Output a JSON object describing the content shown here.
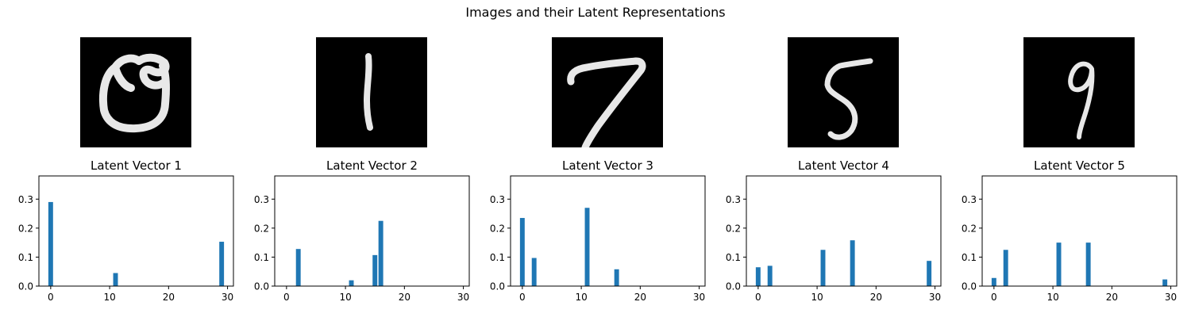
{
  "figure": {
    "title": "Images and their Latent Representations"
  },
  "images": [
    {
      "digit": "0"
    },
    {
      "digit": "1"
    },
    {
      "digit": "7"
    },
    {
      "digit": "5"
    },
    {
      "digit": "9"
    }
  ],
  "chart_data": [
    {
      "type": "bar",
      "title": "Latent Vector 1",
      "x": [
        0,
        11,
        29
      ],
      "values": [
        0.29,
        0.045,
        0.153
      ],
      "xlim": [
        -2,
        31
      ],
      "ylim": [
        0,
        0.38
      ],
      "xticks": [
        "0",
        "10",
        "20",
        "30"
      ],
      "yticks": [
        "0.0",
        "0.1",
        "0.2",
        "0.3"
      ],
      "bar_color": "#1f77b4",
      "grid": false
    },
    {
      "type": "bar",
      "title": "Latent Vector 2",
      "x": [
        2,
        11,
        15,
        16
      ],
      "values": [
        0.128,
        0.02,
        0.107,
        0.225
      ],
      "xlim": [
        -2,
        31
      ],
      "ylim": [
        0,
        0.38
      ],
      "xticks": [
        "0",
        "10",
        "20",
        "30"
      ],
      "yticks": [
        "0.0",
        "0.1",
        "0.2",
        "0.3"
      ],
      "bar_color": "#1f77b4",
      "grid": false
    },
    {
      "type": "bar",
      "title": "Latent Vector 3",
      "x": [
        0,
        2,
        11,
        16
      ],
      "values": [
        0.235,
        0.097,
        0.27,
        0.058
      ],
      "xlim": [
        -2,
        31
      ],
      "ylim": [
        0,
        0.38
      ],
      "xticks": [
        "0",
        "10",
        "20",
        "30"
      ],
      "yticks": [
        "0.0",
        "0.1",
        "0.2",
        "0.3"
      ],
      "bar_color": "#1f77b4",
      "grid": false
    },
    {
      "type": "bar",
      "title": "Latent Vector 4",
      "x": [
        0,
        2,
        11,
        16,
        29
      ],
      "values": [
        0.065,
        0.07,
        0.125,
        0.158,
        0.087
      ],
      "xlim": [
        -2,
        31
      ],
      "ylim": [
        0,
        0.38
      ],
      "xticks": [
        "0",
        "10",
        "20",
        "30"
      ],
      "yticks": [
        "0.0",
        "0.1",
        "0.2",
        "0.3"
      ],
      "bar_color": "#1f77b4",
      "grid": false
    },
    {
      "type": "bar",
      "title": "Latent Vector 5",
      "x": [
        0,
        2,
        11,
        16,
        29
      ],
      "values": [
        0.028,
        0.125,
        0.15,
        0.15,
        0.023
      ],
      "xlim": [
        -2,
        31
      ],
      "ylim": [
        0,
        0.38
      ],
      "xticks": [
        "0",
        "10",
        "20",
        "30"
      ],
      "yticks": [
        "0.0",
        "0.1",
        "0.2",
        "0.3"
      ],
      "bar_color": "#1f77b4",
      "grid": false
    }
  ]
}
